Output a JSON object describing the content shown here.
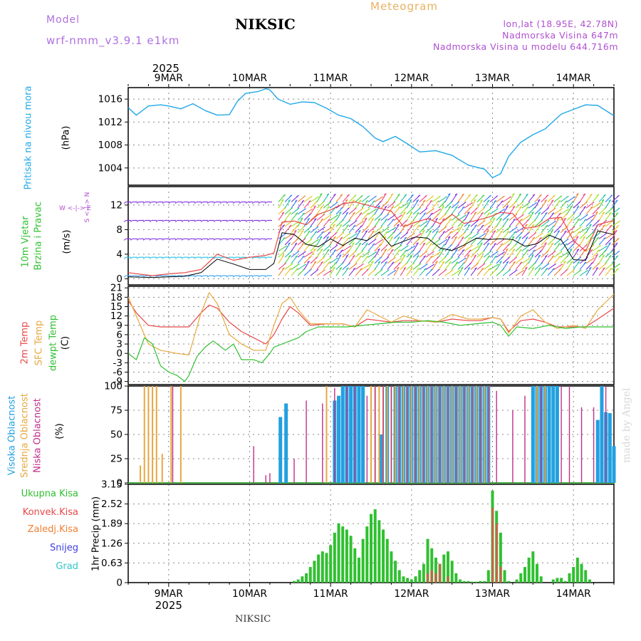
{
  "header": {
    "model_label": "Model",
    "model_name": "wrf-nmm_v3.9.1 e1km",
    "station": "NIKSIC",
    "title": "Meteogram",
    "lonlat": "lon,lat (18.95E, 42.78N)",
    "elevation": "Nadmorska Visina 647m",
    "model_elevation": "Nadmorska Visina u modelu 644.716m",
    "footer": "NIKSIC",
    "watermark": "made by Angel"
  },
  "time_axis": {
    "top_year": "2025",
    "bottom_year": "2025",
    "days": [
      "9MAR",
      "10MAR",
      "11MAR",
      "12MAR",
      "13MAR",
      "14MAR"
    ]
  },
  "colors": {
    "pressure": "#22a8e8",
    "temp2m": "#e84848",
    "sfc": "#e8a840",
    "dew": "#30c030",
    "high_cloud": "#22a0e0",
    "mid_cloud": "#e8a840",
    "low_cloud": "#c0308a",
    "precip_total": "#30c030",
    "precip_conv": "#e85050",
    "precip_frozen": "#f08030",
    "snow": "#4040e0",
    "hail": "#30c8c8",
    "wind_speed": "#000000",
    "wind_gust": "#e84848"
  },
  "panel_labels": {
    "pressure": {
      "name": "Pritisak na nivou mora",
      "unit": "(hPa)"
    },
    "wind": {
      "name1": "10m Vjetar",
      "name2": "Brzina i Pravac",
      "unit": "(m/s)",
      "compass": "W <-|-> E",
      "compass_ns": "S <-|-> N"
    },
    "temp": {
      "t2m": "2m Temp",
      "sfc": "SFC Temp",
      "dew": "dewpt Temp",
      "unit": "(C)"
    },
    "cloud": {
      "high": "Visoka Oblacnost",
      "mid": "Srednja Oblacnost",
      "low": "Niska Oblacnost",
      "unit": "(%)"
    },
    "precip": {
      "total": "Ukupna Kisa",
      "conv": "Konvek.Kisa",
      "frozen": "Zaledj.Kisa",
      "snow": "Snijeg",
      "hail": "Grad",
      "unit": "1hr Precip (mm)"
    }
  },
  "chart_data": [
    {
      "type": "line",
      "name": "pressure",
      "ylabel": "(hPa)",
      "ylim": [
        1001,
        1018
      ],
      "yticks": [
        1004,
        1008,
        1012,
        1016
      ],
      "x_days": [
        8.5,
        8.6,
        8.75,
        8.9,
        9.0,
        9.15,
        9.3,
        9.45,
        9.6,
        9.75,
        9.85,
        9.95,
        10.1,
        10.2,
        10.25,
        10.35,
        10.5,
        10.65,
        10.8,
        10.95,
        11.1,
        11.25,
        11.4,
        11.55,
        11.65,
        11.8,
        11.95,
        12.1,
        12.3,
        12.5,
        12.7,
        12.9,
        13.0,
        13.1,
        13.2,
        13.35,
        13.5,
        13.65,
        13.85,
        14.0,
        14.15,
        14.3,
        14.5
      ],
      "values": [
        1014.5,
        1013.2,
        1014.8,
        1015.0,
        1014.8,
        1014.3,
        1015.2,
        1014.0,
        1013.2,
        1013.3,
        1015.6,
        1017.0,
        1017.3,
        1017.8,
        1017.6,
        1016.0,
        1015.1,
        1015.5,
        1015.4,
        1014.4,
        1013.2,
        1012.6,
        1011.2,
        1009.2,
        1008.6,
        1009.5,
        1008.2,
        1006.8,
        1007.0,
        1006.2,
        1004.5,
        1003.8,
        1002.3,
        1003.0,
        1006.0,
        1008.5,
        1009.8,
        1010.8,
        1013.4,
        1014.2,
        1015.0,
        1014.9,
        1013.1
      ]
    },
    {
      "type": "line",
      "name": "wind",
      "ylabel": "(m/s)",
      "ylim": [
        -1,
        15
      ],
      "yticks": [
        0,
        4,
        8,
        12
      ],
      "series": [
        {
          "name": "speed",
          "x_days": [
            8.5,
            8.8,
            9.0,
            9.2,
            9.4,
            9.6,
            9.8,
            10.0,
            10.2,
            10.3,
            10.4,
            10.55,
            10.7,
            10.85,
            11.0,
            11.15,
            11.3,
            11.45,
            11.6,
            11.75,
            11.9,
            12.05,
            12.2,
            12.35,
            12.5,
            12.65,
            12.8,
            12.95,
            13.1,
            13.25,
            13.4,
            13.55,
            13.7,
            13.85,
            14.0,
            14.15,
            14.3,
            14.5
          ],
          "values": [
            0.3,
            0.2,
            0.3,
            0.4,
            1.0,
            3.2,
            2.4,
            1.5,
            1.5,
            2.5,
            7.5,
            7.2,
            5.6,
            5.2,
            6.5,
            5.4,
            6.6,
            6.2,
            7.6,
            5.3,
            6.1,
            6.8,
            6.6,
            5.0,
            4.6,
            5.5,
            6.6,
            6.4,
            6.5,
            6.4,
            5.3,
            5.7,
            7.1,
            6.3,
            3.1,
            3.0,
            7.8,
            7.2
          ]
        },
        {
          "name": "gust",
          "x_days": [
            8.5,
            8.8,
            9.0,
            9.2,
            9.4,
            9.6,
            9.8,
            10.0,
            10.2,
            10.3,
            10.4,
            10.55,
            10.7,
            10.85,
            11.0,
            11.15,
            11.3,
            11.45,
            11.6,
            11.75,
            11.9,
            12.05,
            12.2,
            12.35,
            12.5,
            12.65,
            12.8,
            12.95,
            13.1,
            13.25,
            13.4,
            13.55,
            13.7,
            13.85,
            14.0,
            14.15,
            14.3,
            14.5
          ],
          "values": [
            1.0,
            0.5,
            0.8,
            1.0,
            1.5,
            4.0,
            3.0,
            3.5,
            3.8,
            4.2,
            9.2,
            9.4,
            8.8,
            10.5,
            11.2,
            12.2,
            12.5,
            12.0,
            11.5,
            11.0,
            8.5,
            9.2,
            9.8,
            9.0,
            10.5,
            9.0,
            9.5,
            10.0,
            10.8,
            10.6,
            8.2,
            8.5,
            9.8,
            10.0,
            6.2,
            4.5,
            8.8,
            9.5
          ]
        }
      ]
    },
    {
      "type": "line",
      "name": "temperature",
      "ylabel": "(C)",
      "ylim": [
        -10,
        21.5
      ],
      "yticks": [
        -9,
        -6,
        -3,
        0,
        3,
        6,
        9,
        12,
        15,
        18,
        21
      ],
      "series": [
        {
          "name": "2m Temp",
          "x_days": [
            8.5,
            8.6,
            8.75,
            8.9,
            9.1,
            9.25,
            9.4,
            9.5,
            9.6,
            9.75,
            9.9,
            10.05,
            10.2,
            10.3,
            10.4,
            10.5,
            10.6,
            10.75,
            10.95,
            11.15,
            11.3,
            11.45,
            11.6,
            11.75,
            11.9,
            12.1,
            12.3,
            12.5,
            12.7,
            12.85,
            13.0,
            13.1,
            13.2,
            13.35,
            13.5,
            13.65,
            13.8,
            14.0,
            14.15,
            14.3,
            14.5
          ],
          "values": [
            17,
            13,
            9,
            8.5,
            8.5,
            8.5,
            13,
            15.5,
            14.5,
            10,
            7,
            5,
            3,
            6,
            11,
            15,
            13,
            9,
            9.5,
            9.5,
            8.5,
            11,
            10.5,
            10,
            10.5,
            10.5,
            10,
            11,
            10.5,
            10.5,
            11.5,
            11,
            7,
            10.5,
            11,
            10,
            8.5,
            8.5,
            8.5,
            11,
            14.5
          ]
        },
        {
          "name": "SFC Temp",
          "x_days": [
            8.5,
            8.6,
            8.75,
            8.9,
            9.1,
            9.25,
            9.4,
            9.5,
            9.6,
            9.75,
            9.9,
            10.05,
            10.2,
            10.3,
            10.4,
            10.5,
            10.6,
            10.75,
            10.95,
            11.15,
            11.3,
            11.45,
            11.6,
            11.75,
            11.9,
            12.1,
            12.3,
            12.5,
            12.7,
            12.85,
            13.0,
            13.1,
            13.2,
            13.35,
            13.5,
            13.65,
            13.8,
            14.0,
            14.15,
            14.3,
            14.5
          ],
          "values": [
            18,
            12,
            3,
            1,
            0,
            -0.5,
            13,
            19.5,
            16,
            6,
            3,
            1,
            1,
            9,
            16,
            18,
            14,
            9.5,
            9.5,
            9.5,
            8.5,
            14,
            12,
            10,
            12,
            10.5,
            10,
            12.5,
            11,
            11,
            11.5,
            11,
            6.5,
            12,
            14,
            10,
            8,
            9,
            8,
            14,
            19
          ]
        },
        {
          "name": "dewpt Temp",
          "x_days": [
            8.5,
            8.6,
            8.7,
            8.8,
            8.9,
            9.0,
            9.1,
            9.2,
            9.25,
            9.35,
            9.45,
            9.55,
            9.7,
            9.8,
            9.9,
            10.05,
            10.15,
            10.25,
            10.3,
            10.4,
            10.5,
            10.6,
            10.7,
            10.85,
            11.0,
            11.2,
            11.4,
            11.6,
            11.8,
            12.0,
            12.2,
            12.4,
            12.6,
            12.8,
            13.0,
            13.1,
            13.2,
            13.3,
            13.5,
            13.7,
            13.9,
            14.1,
            14.3,
            14.5
          ],
          "values": [
            0,
            -2,
            5,
            3,
            -4,
            -6,
            -7,
            -9,
            -7,
            -1,
            2,
            4,
            1,
            3,
            -2,
            -2,
            -3,
            0,
            2,
            3,
            4,
            5,
            7,
            8.5,
            8.5,
            8.5,
            9,
            9.5,
            10,
            10,
            10.5,
            10,
            9,
            9.5,
            10,
            9,
            5.5,
            8.5,
            8,
            9,
            8,
            8.5,
            8.5,
            8.5
          ]
        }
      ]
    },
    {
      "type": "bar",
      "name": "cloud",
      "ylabel": "(%)",
      "ylim": [
        0,
        100
      ],
      "yticks": [
        0,
        25,
        50,
        75,
        100
      ],
      "series": [
        {
          "name": "Visoka Oblacnost",
          "x_days": [
            10.38,
            10.45,
            11.05,
            11.1,
            11.15,
            11.2,
            11.25,
            11.3,
            11.35,
            11.4,
            11.62,
            11.7,
            11.8,
            11.85,
            11.9,
            11.95,
            12.0,
            12.05,
            12.1,
            12.15,
            12.2,
            12.25,
            12.3,
            12.35,
            12.4,
            12.45,
            12.5,
            12.55,
            12.6,
            12.65,
            12.7,
            12.75,
            12.8,
            12.85,
            12.9,
            12.95,
            13.5,
            13.55,
            13.6,
            13.65,
            13.7,
            13.75,
            13.8,
            14.3,
            14.35,
            14.4,
            14.45,
            14.5
          ],
          "values": [
            68,
            82,
            85,
            90,
            100,
            100,
            100,
            100,
            100,
            100,
            50,
            100,
            100,
            100,
            100,
            100,
            100,
            100,
            100,
            100,
            100,
            100,
            100,
            100,
            100,
            100,
            100,
            100,
            100,
            100,
            100,
            100,
            100,
            100,
            100,
            100,
            100,
            100,
            100,
            100,
            100,
            100,
            100,
            65,
            100,
            73,
            72,
            38
          ]
        },
        {
          "name": "Srednja Oblacnost",
          "x_days": [
            8.65,
            8.7,
            8.75,
            8.8,
            8.85,
            8.92,
            9.03,
            9.15,
            10.95,
            11.5,
            11.55,
            11.6,
            11.65,
            11.7,
            11.75,
            11.8,
            11.85,
            11.9,
            11.95,
            12.0,
            12.05,
            12.1,
            12.15,
            12.2,
            12.25,
            12.3,
            12.35,
            12.4,
            12.45,
            12.5,
            12.55,
            12.6,
            12.65,
            12.7,
            12.75,
            12.8,
            12.85,
            12.9,
            12.95,
            13.55,
            13.65
          ],
          "values": [
            18,
            100,
            100,
            100,
            100,
            30,
            100,
            100,
            100,
            100,
            100,
            100,
            100,
            100,
            100,
            100,
            100,
            100,
            100,
            100,
            100,
            100,
            100,
            100,
            100,
            100,
            100,
            100,
            100,
            100,
            100,
            100,
            100,
            100,
            100,
            100,
            100,
            100,
            100,
            100,
            100
          ]
        },
        {
          "name": "Niska Oblacnost",
          "x_days": [
            9.05,
            10.05,
            10.2,
            10.25,
            10.55,
            10.7,
            10.9,
            11.05,
            11.2,
            11.3,
            11.45,
            11.55,
            11.65,
            11.75,
            11.85,
            11.95,
            12.05,
            12.15,
            12.25,
            12.35,
            12.45,
            12.55,
            12.65,
            12.75,
            12.85,
            12.95,
            13.05,
            13.25,
            13.4,
            13.6,
            13.85,
            13.95,
            14.1,
            14.25,
            14.4
          ],
          "values": [
            100,
            38,
            8,
            10,
            25,
            85,
            82,
            98,
            100,
            100,
            90,
            100,
            100,
            100,
            100,
            100,
            100,
            100,
            100,
            100,
            100,
            100,
            100,
            100,
            100,
            100,
            95,
            75,
            90,
            100,
            100,
            100,
            78,
            78,
            100
          ]
        }
      ]
    },
    {
      "type": "bar",
      "name": "precip",
      "ylabel": "1hr Precip (mm)",
      "ylim": [
        0,
        3.15
      ],
      "yticks": [
        0,
        0.63,
        1.26,
        1.89,
        2.52,
        3.15
      ],
      "series": [
        {
          "name": "Ukupna Kisa",
          "x_days": [
            10.55,
            10.6,
            10.65,
            10.7,
            10.75,
            10.8,
            10.85,
            10.9,
            10.95,
            11.0,
            11.05,
            11.1,
            11.15,
            11.2,
            11.25,
            11.3,
            11.35,
            11.4,
            11.45,
            11.5,
            11.55,
            11.6,
            11.65,
            11.7,
            11.75,
            11.8,
            11.85,
            11.9,
            11.95,
            12.0,
            12.05,
            12.1,
            12.15,
            12.2,
            12.25,
            12.3,
            12.35,
            12.4,
            12.45,
            12.5,
            12.55,
            12.6,
            12.65,
            12.7,
            12.75,
            12.8,
            12.85,
            12.9,
            12.95,
            13.0,
            13.05,
            13.1,
            13.15,
            13.2,
            13.3,
            13.35,
            13.4,
            13.45,
            13.5,
            13.55,
            13.6,
            13.75,
            13.8,
            13.85,
            13.9,
            13.95,
            14.0,
            14.05,
            14.1,
            14.15,
            14.2
          ],
          "values": [
            0.05,
            0.1,
            0.2,
            0.3,
            0.5,
            0.7,
            0.9,
            1.0,
            0.95,
            1.2,
            1.6,
            1.9,
            1.8,
            1.7,
            1.5,
            1.1,
            0.8,
            1.4,
            1.8,
            2.2,
            2.35,
            2.0,
            1.7,
            1.4,
            1.0,
            0.7,
            0.4,
            0.2,
            0.15,
            0.1,
            0.2,
            0.4,
            0.6,
            1.4,
            1.1,
            0.8,
            0.6,
            0.9,
            1.0,
            0.7,
            0.3,
            0.1,
            0.05,
            0.05,
            0.03,
            0.03,
            0.05,
            0.05,
            0.4,
            2.95,
            2.3,
            1.6,
            0.4,
            0.05,
            0.1,
            0.3,
            0.5,
            0.8,
            1.0,
            0.6,
            0.2,
            0.1,
            0.15,
            0.15,
            0.05,
            0.3,
            0.5,
            0.8,
            0.6,
            0.4,
            0.1
          ]
        },
        {
          "name": "Konvek.Kisa",
          "x_days": [
            12.2,
            12.25,
            12.3,
            12.35,
            12.45,
            13.0,
            13.05,
            13.1
          ],
          "values": [
            0.3,
            0.4,
            0.3,
            0.6,
            0.2,
            2.4,
            1.9,
            0.5
          ]
        }
      ]
    }
  ]
}
